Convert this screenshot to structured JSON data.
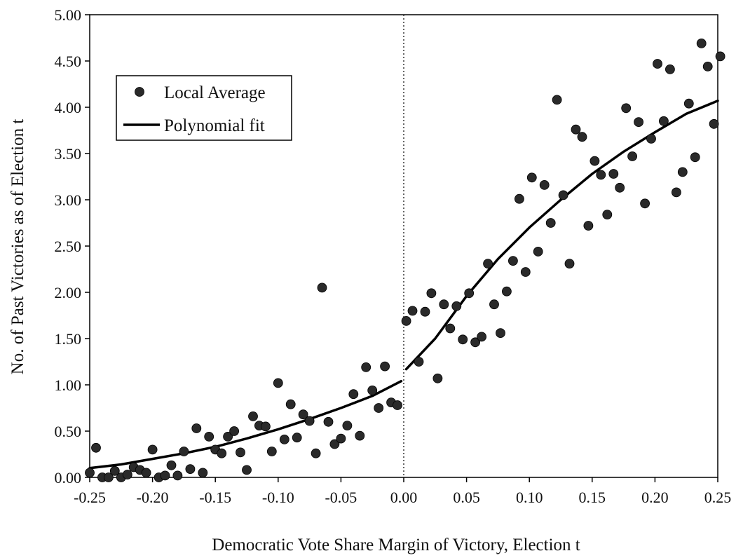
{
  "chart_data": {
    "type": "scatter",
    "title": "",
    "xlabel": "Democratic Vote Share Margin of Victory, Election t",
    "ylabel": "No. of Past Victories as of Election t",
    "xlim": [
      -0.25,
      0.25
    ],
    "ylim": [
      0,
      5
    ],
    "x_ticks": [
      "-0.25",
      "-0.20",
      "-0.15",
      "-0.10",
      "-0.05",
      "0.00",
      "0.05",
      "0.10",
      "0.15",
      "0.20",
      "0.25"
    ],
    "x_tick_values": [
      -0.25,
      -0.2,
      -0.15,
      -0.1,
      -0.05,
      0,
      0.05,
      0.1,
      0.15,
      0.2,
      0.25
    ],
    "y_ticks": [
      "0.00",
      "0.50",
      "1.00",
      "1.50",
      "2.00",
      "2.50",
      "3.00",
      "3.50",
      "4.00",
      "4.50",
      "5.00"
    ],
    "y_tick_values": [
      0,
      0.5,
      1,
      1.5,
      2,
      2.5,
      3,
      3.5,
      4,
      4.5,
      5
    ],
    "grid": false,
    "reference_line_x": 0,
    "legend": {
      "placement": "upper-left",
      "items": [
        {
          "label": "Local Average",
          "marker": "circle"
        },
        {
          "label": "Polynomial fit",
          "marker": "line"
        }
      ]
    },
    "series": [
      {
        "name": "Local Average",
        "kind": "scatter",
        "color": "#2a2a2a",
        "points": [
          [
            -0.25,
            0.05
          ],
          [
            -0.245,
            0.32
          ],
          [
            -0.24,
            0.0
          ],
          [
            -0.235,
            0.0
          ],
          [
            -0.23,
            0.07
          ],
          [
            -0.225,
            0.0
          ],
          [
            -0.22,
            0.03
          ],
          [
            -0.215,
            0.11
          ],
          [
            -0.21,
            0.08
          ],
          [
            -0.205,
            0.05
          ],
          [
            -0.2,
            0.3
          ],
          [
            -0.195,
            0.0
          ],
          [
            -0.19,
            0.02
          ],
          [
            -0.185,
            0.13
          ],
          [
            -0.18,
            0.02
          ],
          [
            -0.175,
            0.28
          ],
          [
            -0.17,
            0.09
          ],
          [
            -0.165,
            0.53
          ],
          [
            -0.16,
            0.05
          ],
          [
            -0.155,
            0.44
          ],
          [
            -0.15,
            0.3
          ],
          [
            -0.145,
            0.26
          ],
          [
            -0.14,
            0.44
          ],
          [
            -0.135,
            0.5
          ],
          [
            -0.13,
            0.27
          ],
          [
            -0.125,
            0.08
          ],
          [
            -0.12,
            0.66
          ],
          [
            -0.115,
            0.56
          ],
          [
            -0.11,
            0.55
          ],
          [
            -0.105,
            0.28
          ],
          [
            -0.1,
            1.02
          ],
          [
            -0.095,
            0.41
          ],
          [
            -0.09,
            0.79
          ],
          [
            -0.085,
            0.43
          ],
          [
            -0.08,
            0.68
          ],
          [
            -0.075,
            0.61
          ],
          [
            -0.07,
            0.26
          ],
          [
            -0.065,
            2.05
          ],
          [
            -0.06,
            0.6
          ],
          [
            -0.055,
            0.36
          ],
          [
            -0.05,
            0.42
          ],
          [
            -0.045,
            0.56
          ],
          [
            -0.04,
            0.9
          ],
          [
            -0.035,
            0.45
          ],
          [
            -0.03,
            1.19
          ],
          [
            -0.025,
            0.94
          ],
          [
            -0.02,
            0.75
          ],
          [
            -0.015,
            1.2
          ],
          [
            -0.01,
            0.81
          ],
          [
            -0.005,
            0.78
          ],
          [
            0.002,
            1.69
          ],
          [
            0.007,
            1.8
          ],
          [
            0.012,
            1.25
          ],
          [
            0.017,
            1.79
          ],
          [
            0.022,
            1.99
          ],
          [
            0.027,
            1.07
          ],
          [
            0.032,
            1.87
          ],
          [
            0.037,
            1.61
          ],
          [
            0.042,
            1.85
          ],
          [
            0.047,
            1.49
          ],
          [
            0.052,
            1.99
          ],
          [
            0.057,
            1.46
          ],
          [
            0.062,
            1.52
          ],
          [
            0.067,
            2.31
          ],
          [
            0.072,
            1.87
          ],
          [
            0.077,
            1.56
          ],
          [
            0.082,
            2.01
          ],
          [
            0.087,
            2.34
          ],
          [
            0.092,
            3.01
          ],
          [
            0.097,
            2.22
          ],
          [
            0.102,
            3.24
          ],
          [
            0.107,
            2.44
          ],
          [
            0.112,
            3.16
          ],
          [
            0.117,
            2.75
          ],
          [
            0.122,
            4.08
          ],
          [
            0.127,
            3.05
          ],
          [
            0.132,
            2.31
          ],
          [
            0.137,
            3.76
          ],
          [
            0.142,
            3.68
          ],
          [
            0.147,
            2.72
          ],
          [
            0.152,
            3.42
          ],
          [
            0.157,
            3.27
          ],
          [
            0.162,
            2.84
          ],
          [
            0.167,
            3.28
          ],
          [
            0.172,
            3.13
          ],
          [
            0.177,
            3.99
          ],
          [
            0.182,
            3.47
          ],
          [
            0.187,
            3.84
          ],
          [
            0.192,
            2.96
          ],
          [
            0.197,
            3.66
          ],
          [
            0.202,
            4.47
          ],
          [
            0.207,
            3.85
          ],
          [
            0.212,
            4.41
          ],
          [
            0.217,
            3.08
          ],
          [
            0.222,
            3.3
          ],
          [
            0.227,
            4.04
          ],
          [
            0.232,
            3.46
          ],
          [
            0.237,
            4.69
          ],
          [
            0.242,
            4.44
          ],
          [
            0.247,
            3.82
          ],
          [
            0.252,
            4.55
          ]
        ]
      },
      {
        "name": "Polynomial fit",
        "kind": "line",
        "color": "#000000",
        "segments": [
          [
            [
              -0.25,
              0.1
            ],
            [
              -0.225,
              0.14
            ],
            [
              -0.2,
              0.2
            ],
            [
              -0.175,
              0.26
            ],
            [
              -0.15,
              0.33
            ],
            [
              -0.125,
              0.42
            ],
            [
              -0.1,
              0.52
            ],
            [
              -0.075,
              0.63
            ],
            [
              -0.05,
              0.75
            ],
            [
              -0.025,
              0.88
            ],
            [
              -0.002,
              1.04
            ]
          ],
          [
            [
              0.002,
              1.17
            ],
            [
              0.025,
              1.5
            ],
            [
              0.05,
              1.96
            ],
            [
              0.075,
              2.36
            ],
            [
              0.1,
              2.7
            ],
            [
              0.125,
              3.0
            ],
            [
              0.15,
              3.28
            ],
            [
              0.175,
              3.52
            ],
            [
              0.2,
              3.73
            ],
            [
              0.225,
              3.93
            ],
            [
              0.25,
              4.07
            ]
          ]
        ]
      }
    ]
  }
}
